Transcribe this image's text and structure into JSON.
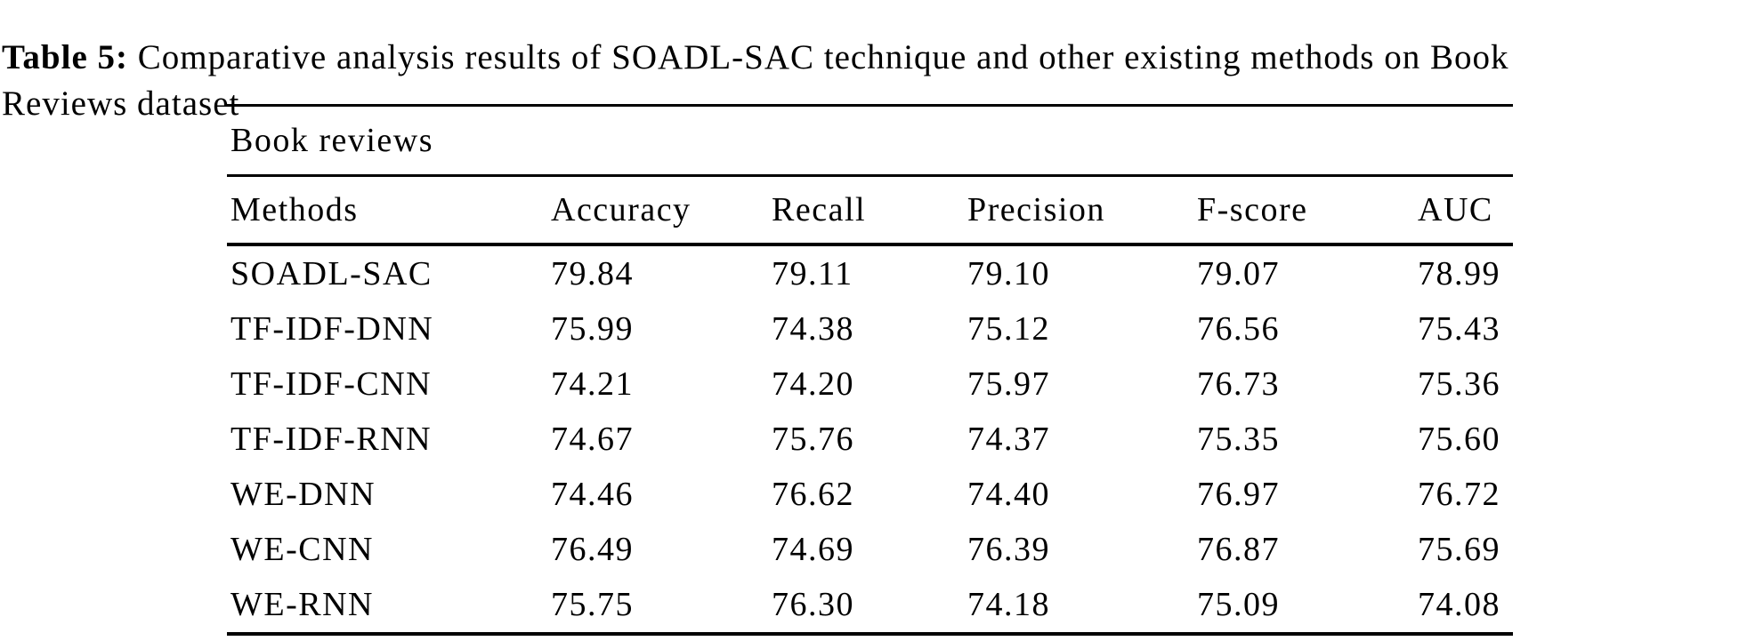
{
  "page": {
    "background": "#ffffff",
    "text_color": "#000000"
  },
  "caption": {
    "label": "Table 5:",
    "line1_rest": "Comparative analysis results of SOADL-SAC technique and other existing methods on Book",
    "line2": "Reviews dataset"
  },
  "table": {
    "group_header": "Book reviews",
    "columns": [
      "Methods",
      "Accuracy",
      "Recall",
      "Precision",
      "F-score",
      "AUC"
    ],
    "rows": [
      {
        "method": "SOADL-SAC",
        "values": [
          "79.84",
          "79.11",
          "79.10",
          "79.07",
          "78.99"
        ]
      },
      {
        "method": "TF-IDF-DNN",
        "values": [
          "75.99",
          "74.38",
          "75.12",
          "76.56",
          "75.43"
        ]
      },
      {
        "method": "TF-IDF-CNN",
        "values": [
          "74.21",
          "74.20",
          "75.97",
          "76.73",
          "75.36"
        ]
      },
      {
        "method": "TF-IDF-RNN",
        "values": [
          "74.67",
          "75.76",
          "74.37",
          "75.35",
          "75.60"
        ]
      },
      {
        "method": "WE-DNN",
        "values": [
          "74.46",
          "76.62",
          "74.40",
          "76.97",
          "76.72"
        ]
      },
      {
        "method": "WE-CNN",
        "values": [
          "76.49",
          "74.69",
          "76.39",
          "76.87",
          "75.69"
        ]
      },
      {
        "method": "WE-RNN",
        "values": [
          "75.75",
          "76.30",
          "74.18",
          "75.09",
          "74.08"
        ]
      }
    ]
  }
}
